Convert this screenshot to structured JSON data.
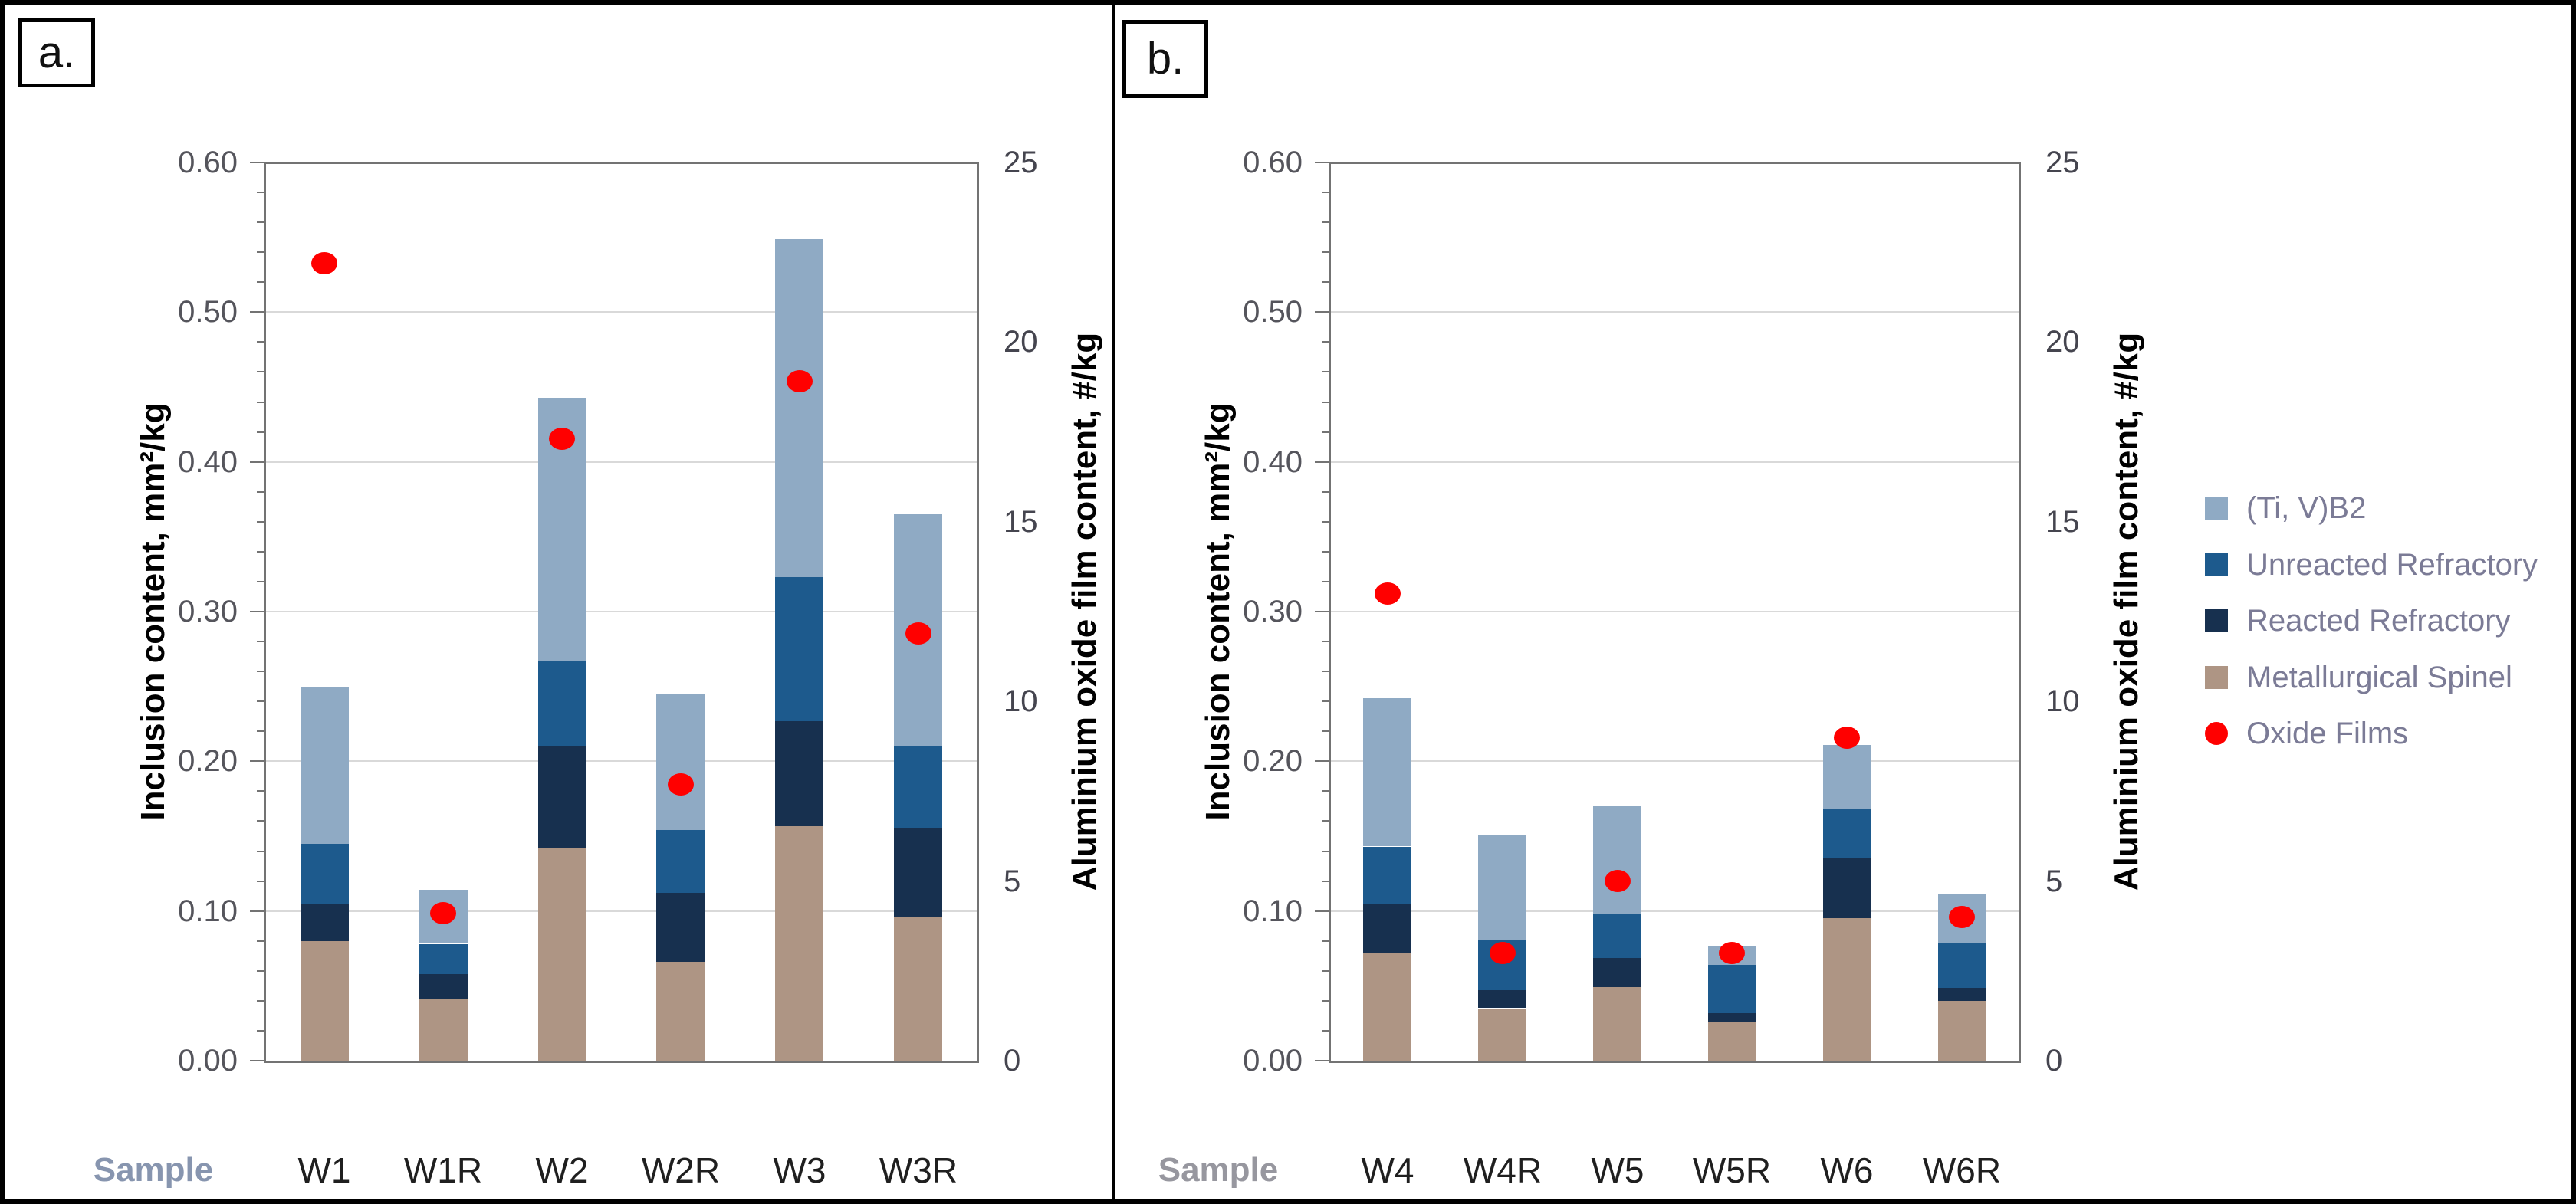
{
  "figure": {
    "panel_a_label": "a.",
    "panel_b_label": "b."
  },
  "legend": {
    "entries": [
      {
        "label": "(Ti, V)B2",
        "color": "#8FAAC4",
        "shape": "square"
      },
      {
        "label": "Unreacted Refractory",
        "color": "#1D5A8D",
        "shape": "square"
      },
      {
        "label": "Reacted Refractory",
        "color": "#17304F",
        "shape": "square"
      },
      {
        "label": "Metallurgical Spinel",
        "color": "#AE9584",
        "shape": "square"
      },
      {
        "label": "Oxide Films",
        "color": "#FF0000",
        "shape": "circle"
      }
    ],
    "text_color": "#7b7b96"
  },
  "chart_data": [
    {
      "type": "bar",
      "subtype": "stacked-with-scatter-overlay",
      "panel": "a.",
      "categories": [
        "W1",
        "W1R",
        "W2",
        "W2R",
        "W3",
        "W3R"
      ],
      "series": [
        {
          "name": "Metallurgical Spinel",
          "color": "#AE9584",
          "values": [
            0.08,
            0.041,
            0.142,
            0.066,
            0.157,
            0.096
          ]
        },
        {
          "name": "Reacted Refractory",
          "color": "#17304F",
          "values": [
            0.025,
            0.017,
            0.068,
            0.046,
            0.07,
            0.059
          ]
        },
        {
          "name": "Unreacted Refractory",
          "color": "#1D5A8D",
          "values": [
            0.04,
            0.02,
            0.057,
            0.042,
            0.096,
            0.055
          ]
        },
        {
          "name": "(Ti, V)B2",
          "color": "#8FAAC4",
          "values": [
            0.105,
            0.036,
            0.176,
            0.091,
            0.226,
            0.155
          ]
        }
      ],
      "bar_totals": [
        0.25,
        0.114,
        0.443,
        0.245,
        0.549,
        0.365
      ],
      "scatter": {
        "name": "Oxide Films",
        "color": "#FF0000",
        "axis": "right",
        "values": [
          22.2,
          4.1,
          17.3,
          7.7,
          18.9,
          11.9
        ]
      },
      "xlabel": "Sample",
      "ylabel_left": "Inclusion content, mm²/kg",
      "ylabel_right": "Aluminium oxide film content, #/kg",
      "ylim_left": [
        0,
        0.6
      ],
      "ylim_right": [
        0,
        25
      ],
      "yticks_left": [
        "0.00",
        "0.10",
        "0.20",
        "0.30",
        "0.40",
        "0.50",
        "0.60"
      ],
      "yticks_right": [
        "0",
        "5",
        "10",
        "15",
        "20",
        "25"
      ],
      "grid": true,
      "legend_position": "right-of-figure"
    },
    {
      "type": "bar",
      "subtype": "stacked-with-scatter-overlay",
      "panel": "b.",
      "categories": [
        "W4",
        "W4R",
        "W5",
        "W5R",
        "W6",
        "W6R"
      ],
      "series": [
        {
          "name": "Metallurgical Spinel",
          "color": "#AE9584",
          "values": [
            0.072,
            0.035,
            0.049,
            0.026,
            0.095,
            0.04
          ]
        },
        {
          "name": "Reacted Refractory",
          "color": "#17304F",
          "values": [
            0.033,
            0.012,
            0.02,
            0.006,
            0.04,
            0.009
          ]
        },
        {
          "name": "Unreacted Refractory",
          "color": "#1D5A8D",
          "values": [
            0.038,
            0.034,
            0.029,
            0.032,
            0.033,
            0.03
          ]
        },
        {
          "name": "(Ti, V)B2",
          "color": "#8FAAC4",
          "values": [
            0.099,
            0.07,
            0.072,
            0.013,
            0.043,
            0.032
          ]
        }
      ],
      "bar_totals": [
        0.242,
        0.151,
        0.17,
        0.077,
        0.211,
        0.111
      ],
      "scatter": {
        "name": "Oxide Films",
        "color": "#FF0000",
        "axis": "right",
        "values": [
          13.0,
          3.0,
          5.0,
          3.0,
          9.0,
          4.0
        ]
      },
      "xlabel": "Sample",
      "ylabel_left": "Inclusion content, mm²/kg",
      "ylabel_right": "Aluminium oxide film content, #/kg",
      "ylim_left": [
        0,
        0.6
      ],
      "ylim_right": [
        0,
        25
      ],
      "yticks_left": [
        "0.00",
        "0.10",
        "0.20",
        "0.30",
        "0.40",
        "0.50",
        "0.60"
      ],
      "yticks_right": [
        "0",
        "5",
        "10",
        "15",
        "20",
        "25"
      ],
      "grid": true,
      "legend_position": "right-of-figure"
    }
  ]
}
